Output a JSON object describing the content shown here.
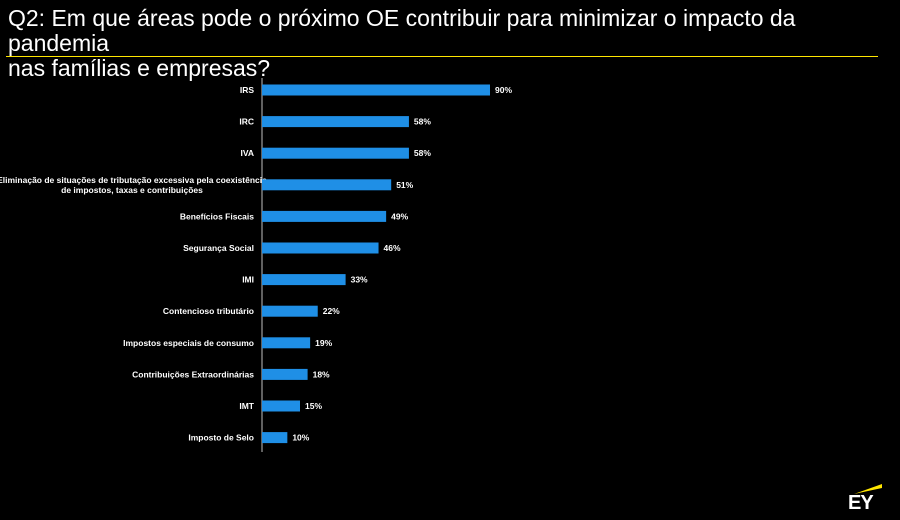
{
  "page": {
    "title": "Q2: Em que áreas pode o próximo OE contribuir para minimizar o impacto da pandemia\nnas famílias e empresas?",
    "logo_text": "EY",
    "colors": {
      "background": "#000000",
      "bar": "#1f8fe6",
      "accent": "#ffe600",
      "text": "#ffffff"
    }
  },
  "chart_data": {
    "type": "bar",
    "orientation": "horizontal",
    "title": "",
    "xlabel": "",
    "ylabel": "",
    "xlim": [
      0,
      100
    ],
    "grid": false,
    "categories": [
      "IRS",
      "IRC",
      "IVA",
      "Eliminação de situações de tributação excessiva pela coexistência\nde impostos, taxas e contribuições",
      "Benefícios Fiscais",
      "Segurança Social",
      "IMI",
      "Contencioso tributário",
      "Impostos especiais de consumo",
      "Contribuições Extraordinárias",
      "IMT",
      "Imposto de Selo"
    ],
    "values": [
      90,
      58,
      58,
      51,
      49,
      46,
      33,
      22,
      19,
      18,
      15,
      10
    ],
    "value_labels": [
      "90%",
      "58%",
      "58%",
      "51%",
      "49%",
      "46%",
      "33%",
      "22%",
      "19%",
      "18%",
      "15%",
      "10%"
    ]
  }
}
